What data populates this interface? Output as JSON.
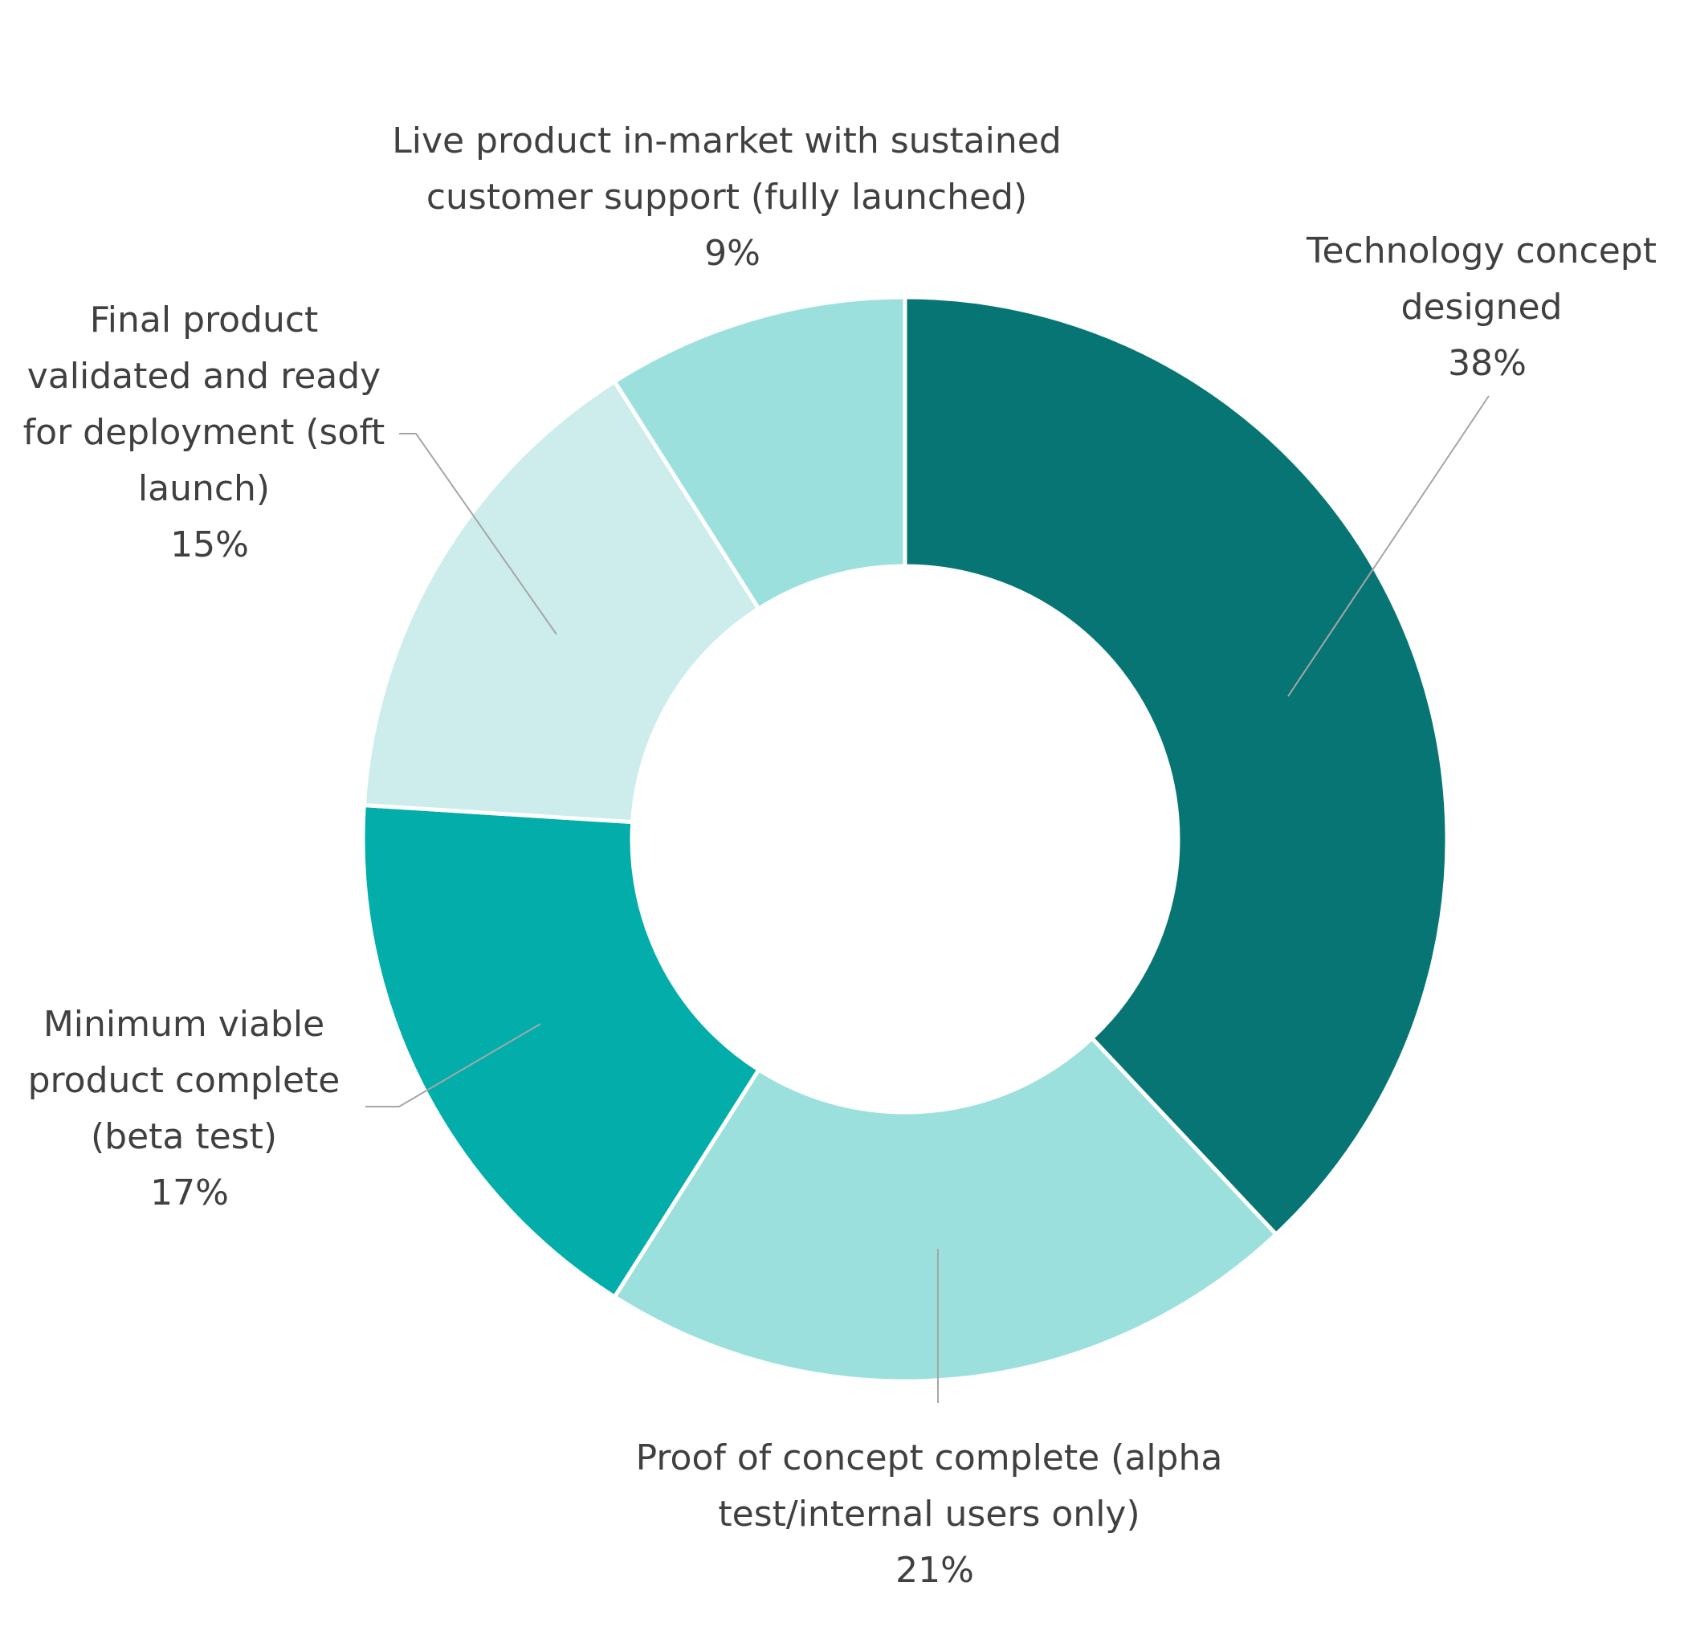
{
  "chart_data": {
    "type": "pie",
    "variant": "donut",
    "title": "",
    "start": "12 o'clock",
    "direction": "clockwise",
    "slices": [
      {
        "label": "Technology concept designed",
        "value": 38,
        "value_label": "38%",
        "color": "#077574"
      },
      {
        "label": "Proof of concept complete (alpha test/internal users only)",
        "value": 21,
        "value_label": "21%",
        "color": "#9ce0dd"
      },
      {
        "label": "Minimum viable product complete (beta test)",
        "value": 17,
        "value_label": "17%",
        "color": "#03aeaa"
      },
      {
        "label": "Final product validated and ready for deployment (soft launch)",
        "value": 15,
        "value_label": "15%",
        "color": "#cdedec"
      },
      {
        "label": "Live product in-market with sustained customer support (fully launched)",
        "value": 9,
        "value_label": "9%",
        "color": "#9ce0dd"
      }
    ],
    "data_labels": true,
    "leader_lines": true,
    "leader_line_color": "#a6a6a6",
    "slice_border_color": "#ffffff",
    "background_color": "#ffffff"
  }
}
